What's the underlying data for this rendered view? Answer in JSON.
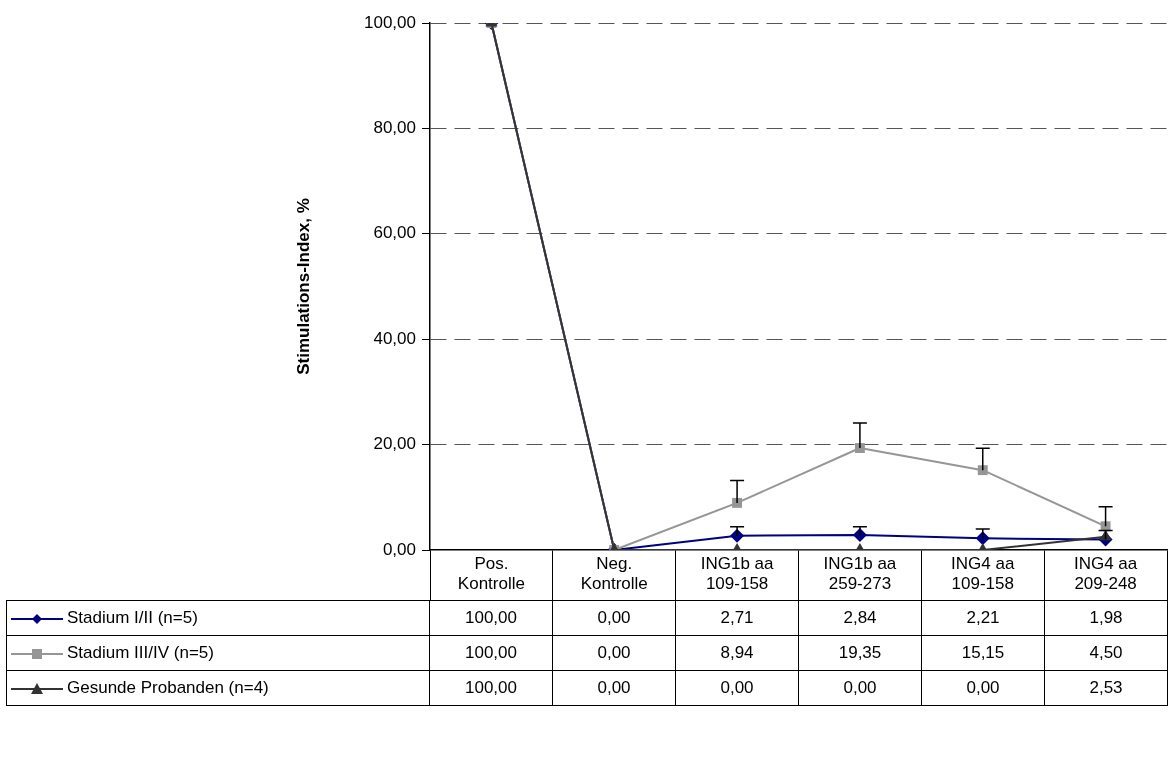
{
  "chart_data": {
    "type": "line",
    "ylabel": "Stimulations-Index, %",
    "categories": [
      "Pos. Kontrolle",
      "Neg. Kontrolle",
      "ING1b aa 109-158",
      "ING1b aa 259-273",
      "ING4 aa 109-158",
      "ING4 aa 209-248"
    ],
    "ylim": [
      0,
      100
    ],
    "yticks": [
      {
        "value": 0,
        "label": "0,00"
      },
      {
        "value": 20,
        "label": "20,00"
      },
      {
        "value": 40,
        "label": "40,00"
      },
      {
        "value": 60,
        "label": "60,00"
      },
      {
        "value": 80,
        "label": "80,00"
      },
      {
        "value": 100,
        "label": "100,00"
      }
    ],
    "grid": "y",
    "legend": "bottom",
    "line_style": "solid",
    "series": [
      {
        "name": "Stadium I/II (n=5)",
        "color": "#000080",
        "marker": "diamond",
        "values": [
          100,
          0,
          2.71,
          2.84,
          2.21,
          1.98
        ],
        "value_labels": [
          "100,00",
          "0,00",
          "2,71",
          "2,84",
          "2,21",
          "1,98"
        ],
        "errors": [
          null,
          null,
          [
            2.71,
            4.4
          ],
          [
            2.84,
            4.4
          ],
          [
            2.21,
            4.0
          ],
          [
            1.98,
            3.7
          ]
        ]
      },
      {
        "name": "Stadium III/IV (n=5)",
        "color": "#969696",
        "marker": "square",
        "values": [
          100,
          0,
          8.94,
          19.35,
          15.15,
          4.5
        ],
        "value_labels": [
          "100,00",
          "0,00",
          "8,94",
          "19,35",
          "15,15",
          "4,50"
        ],
        "errors": [
          null,
          null,
          [
            8.94,
            13.2
          ],
          [
            19.35,
            24.1
          ],
          [
            15.15,
            19.3
          ],
          [
            4.5,
            8.2
          ]
        ]
      },
      {
        "name": "Gesunde Probanden (n=4)",
        "color": "#333333",
        "marker": "triangle",
        "values": [
          100,
          0,
          0,
          0,
          0,
          2.53
        ],
        "value_labels": [
          "100,00",
          "0,00",
          "0,00",
          "0,00",
          "0,00",
          "2,53"
        ]
      }
    ]
  }
}
